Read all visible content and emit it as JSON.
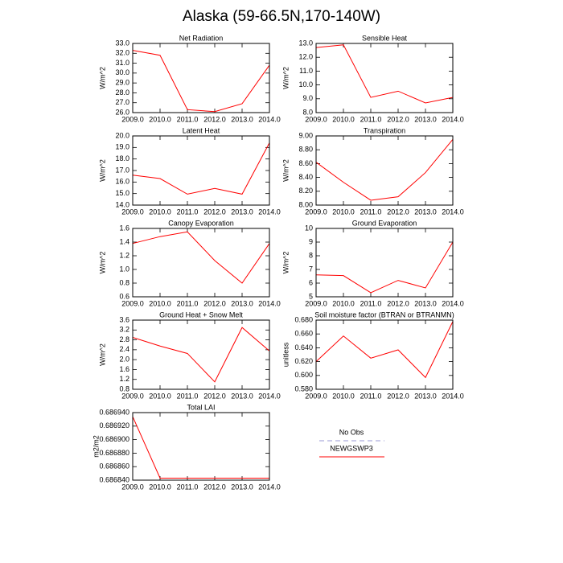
{
  "title": "Alaska (59-66.5N,170-140W)",
  "legend": {
    "entries": [
      {
        "name": "No Obs",
        "color": "#9a9ad6",
        "dash": true
      },
      {
        "name": "NEWGSWP3",
        "color": "#ff0000",
        "dash": false
      }
    ]
  },
  "chart_data": [
    {
      "type": "line",
      "title": "Net Radiation",
      "y_label": "W/m^2",
      "x": [
        2009,
        2010,
        2011,
        2012,
        2013,
        2014
      ],
      "xlim": [
        2009,
        2014
      ],
      "xticks": [
        {
          "value": 2009,
          "label": "2009.0"
        },
        {
          "value": 2010,
          "label": "2010.0"
        },
        {
          "value": 2011,
          "label": "2011.0"
        },
        {
          "value": 2012,
          "label": "2012.0"
        },
        {
          "value": 2013,
          "label": "2013.0"
        },
        {
          "value": 2014,
          "label": "2014.0"
        }
      ],
      "ylim": [
        26,
        33
      ],
      "yticks": [
        {
          "value": 26,
          "label": "26.0"
        },
        {
          "value": 27,
          "label": "27.0"
        },
        {
          "value": 28,
          "label": "28.0"
        },
        {
          "value": 29,
          "label": "29.0"
        },
        {
          "value": 30,
          "label": "30.0"
        },
        {
          "value": 31,
          "label": "31.0"
        },
        {
          "value": 32,
          "label": "32.0"
        },
        {
          "value": 33,
          "label": "33.0"
        }
      ],
      "series": [
        {
          "color": "#ff0000",
          "values": [
            32.3,
            31.8,
            26.3,
            26.1,
            26.9,
            30.8
          ]
        }
      ]
    },
    {
      "type": "line",
      "title": "Sensible Heat",
      "y_label": "W/m^2",
      "x": [
        2009,
        2010,
        2011,
        2012,
        2013,
        2014
      ],
      "xlim": [
        2009,
        2014
      ],
      "xticks": [
        {
          "value": 2009,
          "label": "2009.0"
        },
        {
          "value": 2010,
          "label": "2010.0"
        },
        {
          "value": 2011,
          "label": "2011.0"
        },
        {
          "value": 2012,
          "label": "2012.0"
        },
        {
          "value": 2013,
          "label": "2013.0"
        },
        {
          "value": 2014,
          "label": "2014.0"
        }
      ],
      "ylim": [
        8,
        13
      ],
      "yticks": [
        {
          "value": 8,
          "label": "8.0"
        },
        {
          "value": 9,
          "label": "9.0"
        },
        {
          "value": 10,
          "label": "10.0"
        },
        {
          "value": 11,
          "label": "11.0"
        },
        {
          "value": 12,
          "label": "12.0"
        },
        {
          "value": 13,
          "label": "13.0"
        }
      ],
      "series": [
        {
          "color": "#ff0000",
          "values": [
            12.7,
            12.9,
            9.1,
            9.55,
            8.7,
            9.1
          ]
        }
      ]
    },
    {
      "type": "line",
      "title": "Latent Heat",
      "y_label": "W/m^2",
      "x": [
        2009,
        2010,
        2011,
        2012,
        2013,
        2014
      ],
      "xlim": [
        2009,
        2014
      ],
      "xticks": [
        {
          "value": 2009,
          "label": "2009.0"
        },
        {
          "value": 2010,
          "label": "2010.0"
        },
        {
          "value": 2011,
          "label": "2011.0"
        },
        {
          "value": 2012,
          "label": "2012.0"
        },
        {
          "value": 2013,
          "label": "2013.0"
        },
        {
          "value": 2014,
          "label": "2014.0"
        }
      ],
      "ylim": [
        14,
        20
      ],
      "yticks": [
        {
          "value": 14,
          "label": "14.0"
        },
        {
          "value": 15,
          "label": "15.0"
        },
        {
          "value": 16,
          "label": "16.0"
        },
        {
          "value": 17,
          "label": "17.0"
        },
        {
          "value": 18,
          "label": "18.0"
        },
        {
          "value": 19,
          "label": "19.0"
        },
        {
          "value": 20,
          "label": "20.0"
        }
      ],
      "series": [
        {
          "color": "#ff0000",
          "values": [
            16.6,
            16.3,
            14.95,
            15.45,
            14.95,
            19.4
          ]
        }
      ]
    },
    {
      "type": "line",
      "title": "Transpiration",
      "y_label": "W/m^2",
      "x": [
        2009,
        2010,
        2011,
        2012,
        2013,
        2014
      ],
      "xlim": [
        2009,
        2014
      ],
      "xticks": [
        {
          "value": 2009,
          "label": "2009.0"
        },
        {
          "value": 2010,
          "label": "2010.0"
        },
        {
          "value": 2011,
          "label": "2011.0"
        },
        {
          "value": 2012,
          "label": "2012.0"
        },
        {
          "value": 2013,
          "label": "2013.0"
        },
        {
          "value": 2014,
          "label": "2014.0"
        }
      ],
      "ylim": [
        8,
        9
      ],
      "yticks": [
        {
          "value": 8,
          "label": "8.00"
        },
        {
          "value": 8.2,
          "label": "8.20"
        },
        {
          "value": 8.4,
          "label": "8.40"
        },
        {
          "value": 8.6,
          "label": "8.60"
        },
        {
          "value": 8.8,
          "label": "8.80"
        },
        {
          "value": 9,
          "label": "9.00"
        }
      ],
      "series": [
        {
          "color": "#ff0000",
          "values": [
            8.62,
            8.33,
            8.07,
            8.12,
            8.47,
            8.95
          ]
        }
      ]
    },
    {
      "type": "line",
      "title": "Canopy Evaporation",
      "y_label": "W/m^2",
      "x": [
        2009,
        2010,
        2011,
        2012,
        2013,
        2014
      ],
      "xlim": [
        2009,
        2014
      ],
      "xticks": [
        {
          "value": 2009,
          "label": "2009.0"
        },
        {
          "value": 2010,
          "label": "2010.0"
        },
        {
          "value": 2011,
          "label": "2011.0"
        },
        {
          "value": 2012,
          "label": "2012.0"
        },
        {
          "value": 2013,
          "label": "2013.0"
        },
        {
          "value": 2014,
          "label": "2014.0"
        }
      ],
      "ylim": [
        0.6,
        1.6
      ],
      "yticks": [
        0.6,
        0.8,
        {
          "value": 1,
          "label": "1.0"
        },
        1.2,
        1.4,
        1.6
      ],
      "series": [
        {
          "color": "#ff0000",
          "values": [
            1.38,
            1.48,
            1.55,
            1.13,
            0.8,
            1.38
          ]
        }
      ]
    },
    {
      "type": "line",
      "title": "Ground Evaporation",
      "y_label": "W/m^2",
      "x": [
        2009,
        2010,
        2011,
        2012,
        2013,
        2014
      ],
      "xlim": [
        2009,
        2014
      ],
      "xticks": [
        {
          "value": 2009,
          "label": "2009.0"
        },
        {
          "value": 2010,
          "label": "2010.0"
        },
        {
          "value": 2011,
          "label": "2011.0"
        },
        {
          "value": 2012,
          "label": "2012.0"
        },
        {
          "value": 2013,
          "label": "2013.0"
        },
        {
          "value": 2014,
          "label": "2014.0"
        }
      ],
      "ylim": [
        5,
        10
      ],
      "yticks": [
        5,
        6,
        7,
        8,
        9,
        10
      ],
      "series": [
        {
          "color": "#ff0000",
          "values": [
            6.6,
            6.55,
            5.3,
            6.2,
            5.65,
            9.0
          ]
        }
      ]
    },
    {
      "type": "line",
      "title": "Ground Heat + Snow Melt",
      "y_label": "W/m^2",
      "x": [
        2009,
        2010,
        2011,
        2012,
        2013,
        2014
      ],
      "xlim": [
        2009,
        2014
      ],
      "xticks": [
        {
          "value": 2009,
          "label": "2009.0"
        },
        {
          "value": 2010,
          "label": "2010.0"
        },
        {
          "value": 2011,
          "label": "2011.0"
        },
        {
          "value": 2012,
          "label": "2012.0"
        },
        {
          "value": 2013,
          "label": "2013.0"
        },
        {
          "value": 2014,
          "label": "2014.0"
        }
      ],
      "ylim": [
        0.8,
        3.6
      ],
      "yticks": [
        0.8,
        1.2,
        1.6,
        {
          "value": 2,
          "label": "2.0"
        },
        2.4,
        2.8,
        3.2,
        3.6
      ],
      "series": [
        {
          "color": "#ff0000",
          "values": [
            2.9,
            2.55,
            2.25,
            1.1,
            3.3,
            2.35
          ]
        }
      ]
    },
    {
      "type": "line",
      "title": "Soil moisture factor (BTRAN or BTRANMN)",
      "y_label": "unitless",
      "x": [
        2009,
        2010,
        2011,
        2012,
        2013,
        2014
      ],
      "xlim": [
        2009,
        2014
      ],
      "xticks": [
        {
          "value": 2009,
          "label": "2009.0"
        },
        {
          "value": 2010,
          "label": "2010.0"
        },
        {
          "value": 2011,
          "label": "2011.0"
        },
        {
          "value": 2012,
          "label": "2012.0"
        },
        {
          "value": 2013,
          "label": "2013.0"
        },
        {
          "value": 2014,
          "label": "2014.0"
        }
      ],
      "ylim": [
        0.58,
        0.68
      ],
      "yticks": [
        {
          "value": 0.58,
          "label": "0.580"
        },
        {
          "value": 0.6,
          "label": "0.600"
        },
        {
          "value": 0.62,
          "label": "0.620"
        },
        {
          "value": 0.64,
          "label": "0.640"
        },
        {
          "value": 0.66,
          "label": "0.660"
        },
        {
          "value": 0.68,
          "label": "0.680"
        }
      ],
      "series": [
        {
          "color": "#ff0000",
          "values": [
            0.62,
            0.657,
            0.625,
            0.637,
            0.597,
            0.678
          ]
        }
      ]
    },
    {
      "type": "line",
      "title": "Total LAI",
      "y_label": "m2/m2",
      "x": [
        2009,
        2010,
        2011,
        2012,
        2013,
        2014
      ],
      "xlim": [
        2009,
        2014
      ],
      "xticks": [
        {
          "value": 2009,
          "label": "2009.0"
        },
        {
          "value": 2010,
          "label": "2010.0"
        },
        {
          "value": 2011,
          "label": "2011.0"
        },
        {
          "value": 2012,
          "label": "2012.0"
        },
        {
          "value": 2013,
          "label": "2013.0"
        },
        {
          "value": 2014,
          "label": "2014.0"
        }
      ],
      "ylim": [
        0.68684,
        0.68694
      ],
      "yticks": [
        {
          "value": 0.68684,
          "label": "0.686840"
        },
        {
          "value": 0.68686,
          "label": "0.686860"
        },
        {
          "value": 0.68688,
          "label": "0.686880"
        },
        {
          "value": 0.6869,
          "label": "0.686900"
        },
        {
          "value": 0.68692,
          "label": "0.686920"
        },
        {
          "value": 0.68694,
          "label": "0.686940"
        }
      ],
      "series": [
        {
          "color": "#ff0000",
          "values": [
            0.686934,
            0.686843,
            0.686843,
            0.686843,
            0.686843,
            0.686843
          ]
        }
      ]
    }
  ]
}
